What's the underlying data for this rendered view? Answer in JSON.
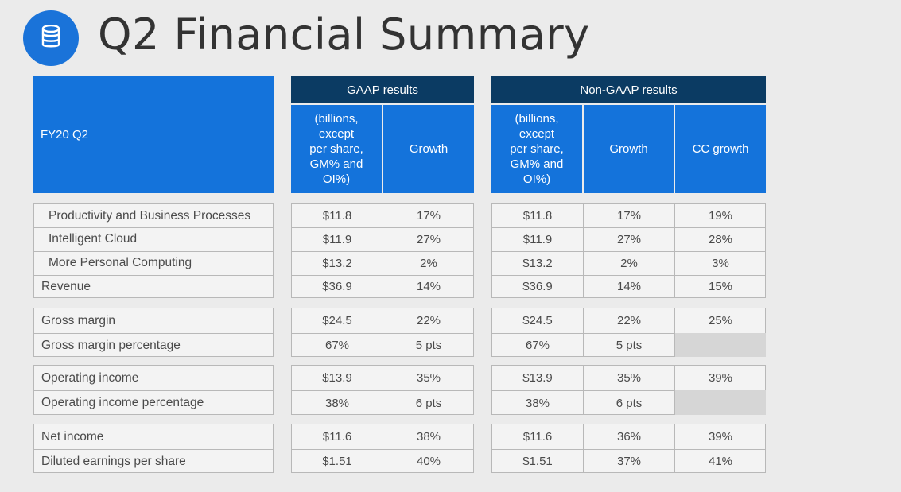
{
  "title": "Q2 Financial Summary",
  "logo_icon": "database-icon",
  "header": {
    "period": "FY20 Q2",
    "gaap": "GAAP results",
    "nongaap": "Non-GAAP results",
    "units": "(billions,\nexcept\nper share,\nGM% and\nOI%)",
    "growth": "Growth",
    "cc_growth": "CC growth"
  },
  "groups": [
    {
      "rows": [
        {
          "label": "Productivity and Business Processes",
          "indent": true,
          "gaap_value": "$11.8",
          "gaap_growth": "17%",
          "ng_value": "$11.8",
          "ng_growth": "17%",
          "cc": "19%"
        },
        {
          "label": "Intelligent Cloud",
          "indent": true,
          "gaap_value": "$11.9",
          "gaap_growth": "27%",
          "ng_value": "$11.9",
          "ng_growth": "27%",
          "cc": "28%"
        },
        {
          "label": "More Personal Computing",
          "indent": true,
          "gaap_value": "$13.2",
          "gaap_growth": "2%",
          "ng_value": "$13.2",
          "ng_growth": "2%",
          "cc": "3%"
        },
        {
          "label": "Revenue",
          "indent": false,
          "gaap_value": "$36.9",
          "gaap_growth": "14%",
          "ng_value": "$36.9",
          "ng_growth": "14%",
          "cc": "15%"
        }
      ]
    },
    {
      "rows": [
        {
          "label": "Gross margin",
          "indent": false,
          "gaap_value": "$24.5",
          "gaap_growth": "22%",
          "ng_value": "$24.5",
          "ng_growth": "22%",
          "cc": "25%"
        },
        {
          "label": "Gross margin percentage",
          "indent": false,
          "gaap_value": "67%",
          "gaap_growth": "5 pts",
          "ng_value": "67%",
          "ng_growth": "5 pts",
          "cc": ""
        }
      ]
    },
    {
      "rows": [
        {
          "label": "Operating income",
          "indent": false,
          "gaap_value": "$13.9",
          "gaap_growth": "35%",
          "ng_value": "$13.9",
          "ng_growth": "35%",
          "cc": "39%"
        },
        {
          "label": "Operating income percentage",
          "indent": false,
          "gaap_value": "38%",
          "gaap_growth": "6 pts",
          "ng_value": "38%",
          "ng_growth": "6 pts",
          "cc": ""
        }
      ]
    },
    {
      "rows": [
        {
          "label": "Net income",
          "indent": false,
          "gaap_value": "$11.6",
          "gaap_growth": "38%",
          "ng_value": "$11.6",
          "ng_growth": "36%",
          "cc": "39%"
        },
        {
          "label": "Diluted earnings per share",
          "indent": false,
          "gaap_value": "$1.51",
          "gaap_growth": "40%",
          "ng_value": "$1.51",
          "ng_growth": "37%",
          "cc": "41%"
        }
      ]
    }
  ],
  "colors": {
    "dark_header": "#0b3b63",
    "blue_header": "#1473db",
    "logo": "#1a73d9"
  }
}
